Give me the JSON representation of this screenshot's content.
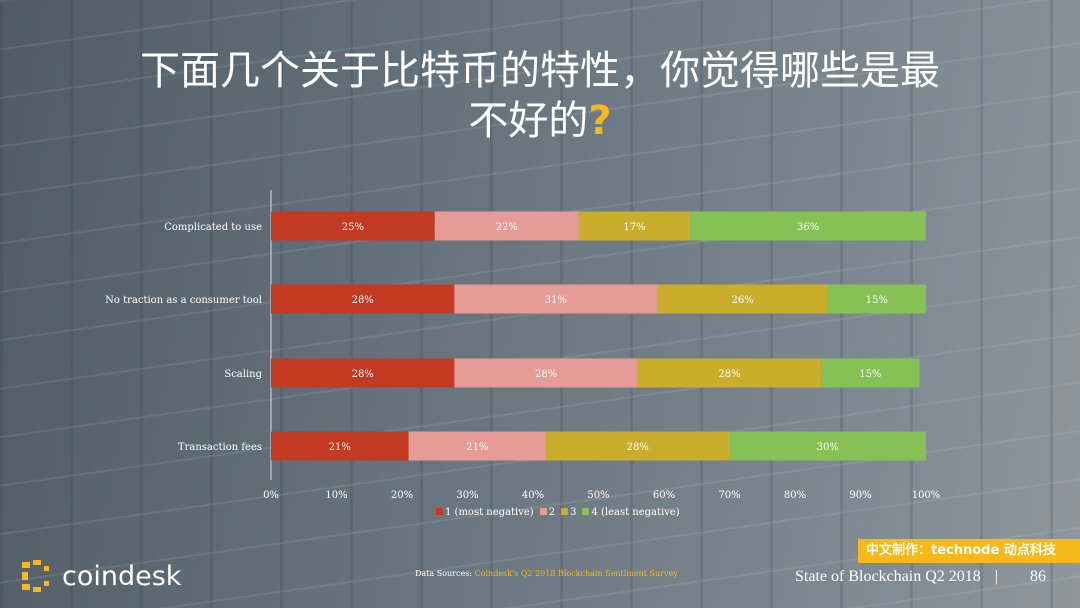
{
  "title": {
    "line1": "下面几个关于比特币的特性，你觉得哪些是最",
    "line2": "不好的",
    "qmark": "?"
  },
  "colors": {
    "s1": "#c23a22",
    "s2": "#e69b96",
    "s3": "#c9ad2b",
    "s4": "#86c156"
  },
  "chart_data": {
    "type": "bar",
    "stacked": true,
    "orientation": "horizontal",
    "categories": [
      "Complicated to use",
      "No traction as a consumer tool",
      "Scaling",
      "Transaction fees"
    ],
    "series": [
      {
        "name": "1 (most negative)",
        "values": [
          25,
          28,
          28,
          21
        ]
      },
      {
        "name": "2",
        "values": [
          22,
          31,
          28,
          21
        ]
      },
      {
        "name": "3",
        "values": [
          17,
          26,
          28,
          28
        ]
      },
      {
        "name": "4 (least negative)",
        "values": [
          36,
          15,
          15,
          30
        ]
      }
    ],
    "xlim": [
      0,
      100
    ],
    "xticks": [
      "0%",
      "10%",
      "20%",
      "30%",
      "40%",
      "50%",
      "60%",
      "70%",
      "80%",
      "90%",
      "100%"
    ],
    "legend": "bottom"
  },
  "source": {
    "label": "Data Sources:",
    "text": "Coindesk's Q2 2018 Blockchain Sentiment Survey"
  },
  "logo": "coindesk",
  "badge": "中文制作：technode 动点科技",
  "footer": {
    "title": "State of Blockchain Q2 2018",
    "sep": "|",
    "page": "86"
  }
}
